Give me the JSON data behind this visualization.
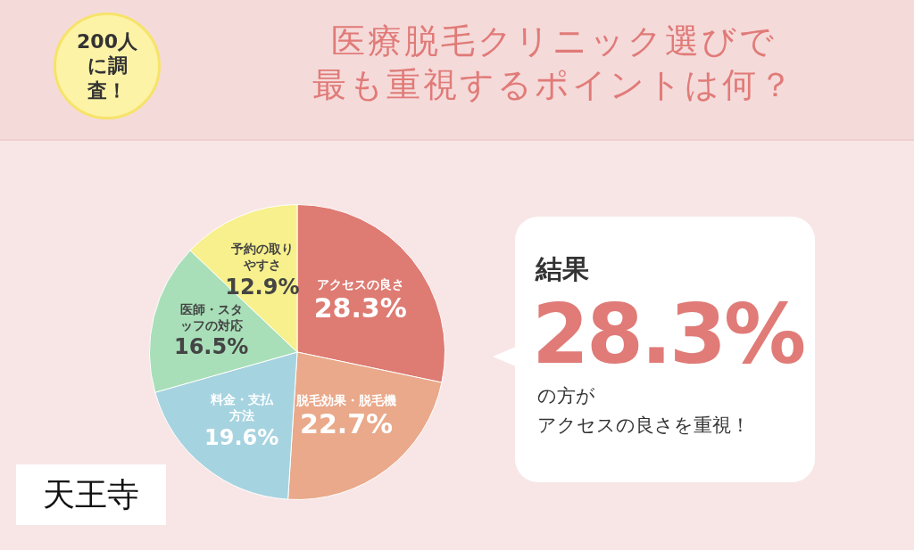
{
  "chart_data": {
    "type": "pie",
    "title": "医療脱毛クリニック選びで最も重視するポイントは何？",
    "subtitle": "200人に調査！",
    "categories": [
      "アクセスの良さ",
      "脱毛効果・脱毛機",
      "料金・支払方法",
      "医師・スタッフの対応",
      "予約の取りやすさ"
    ],
    "values": [
      28.3,
      22.7,
      19.6,
      16.5,
      12.9
    ],
    "value_labels": [
      "28.3%",
      "22.7%",
      "19.6%",
      "16.5%",
      "12.9%"
    ],
    "colors": [
      "#de7b73",
      "#e9a98a",
      "#a6d3e0",
      "#a8dfb8",
      "#f7f08c"
    ],
    "annotations": [
      "天王寺",
      "結果",
      "28.3%",
      "の方が",
      "アクセスの良さを重視！"
    ],
    "legend": false
  }
}
